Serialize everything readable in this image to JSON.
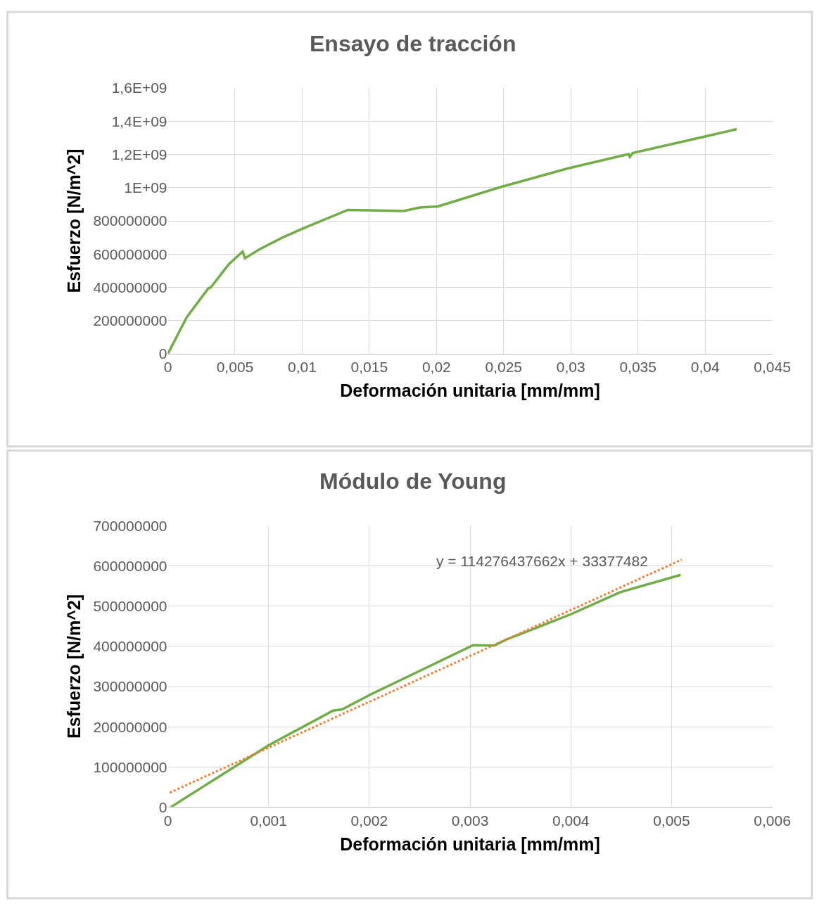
{
  "chart_data": [
    {
      "type": "line",
      "title": "Ensayo de tracción",
      "xlabel": "Deformación unitaria [mm/mm]",
      "ylabel": "Esfuerzo [N/m^2]",
      "series": [
        {
          "color": "#70ad47",
          "x": [
            0,
            0.00141,
            0.00302,
            0.0032,
            0.00455,
            0.00557,
            0.00574,
            0.00684,
            0.00854,
            0.01008,
            0.01339,
            0.015,
            0.01755,
            0.01874,
            0.0201,
            0.0248,
            0.02971,
            0.0343,
            0.0344,
            0.0346,
            0.04174,
            0.04235
          ],
          "values": [
            0,
            221000000,
            395000000,
            400000000,
            540000000,
            616000000,
            575000000,
            630000000,
            700000000,
            755000000,
            866000000,
            863000000,
            859000000,
            880000000,
            887000000,
            1004000000,
            1114000000,
            1202000000,
            1185000000,
            1208000000,
            1340000000,
            1352000000
          ]
        }
      ],
      "xlim": [
        0,
        0.045
      ],
      "xticks": [
        0,
        {
          "value": 0.005,
          "label": "0,005"
        },
        {
          "value": 0.01,
          "label": "0,01"
        },
        {
          "value": 0.015,
          "label": "0,015"
        },
        {
          "value": 0.02,
          "label": "0,02"
        },
        {
          "value": 0.025,
          "label": "0,025"
        },
        {
          "value": 0.03,
          "label": "0,03"
        },
        {
          "value": 0.035,
          "label": "0,035"
        },
        {
          "value": 0.04,
          "label": "0,04"
        },
        {
          "value": 0.045,
          "label": "0,045"
        }
      ],
      "ylim": [
        0,
        1600000000
      ],
      "yticks": [
        0,
        200000000,
        400000000,
        600000000,
        800000000,
        {
          "value": 1000000000,
          "label": "1E+09"
        },
        {
          "value": 1200000000,
          "label": "1,2E+09"
        },
        {
          "value": 1400000000,
          "label": "1,4E+09"
        },
        {
          "value": 1600000000,
          "label": "1,6E+09"
        }
      ],
      "grid": true,
      "line_style": "solid"
    },
    {
      "type": "line",
      "title": "Módulo de Young",
      "xlabel": "Deformación unitaria [mm/mm]",
      "ylabel": "Esfuerzo [N/m^2]",
      "series": [
        {
          "color": "#70ad47",
          "x": [
            3e-05,
            0.001,
            0.00164,
            0.00173,
            0.00201,
            0.00303,
            0.00324,
            0.00336,
            0.004,
            0.00449,
            0.00509
          ],
          "values": [
            0,
            154000000,
            240000000,
            243000000,
            280000000,
            403000000,
            402000000,
            417000000,
            480000000,
            535000000,
            578000000
          ]
        },
        {
          "color": "#ed7d31",
          "line_style": "dotted",
          "x": [
            2e-05,
            0.0051
          ],
          "values": [
            36000000,
            616000000
          ]
        }
      ],
      "annotations": [
        "y = 114276437662x + 33377482"
      ],
      "xlim": [
        0,
        0.006
      ],
      "xticks": [
        0,
        {
          "value": 0.001,
          "label": "0,001"
        },
        {
          "value": 0.002,
          "label": "0,002"
        },
        {
          "value": 0.003,
          "label": "0,003"
        },
        {
          "value": 0.004,
          "label": "0,004"
        },
        {
          "value": 0.005,
          "label": "0,005"
        },
        {
          "value": 0.006,
          "label": "0,006"
        }
      ],
      "ylim": [
        0,
        700000000
      ],
      "yticks": [
        0,
        100000000,
        200000000,
        300000000,
        400000000,
        500000000,
        600000000,
        700000000
      ],
      "grid": true,
      "line_style": "solid"
    }
  ]
}
